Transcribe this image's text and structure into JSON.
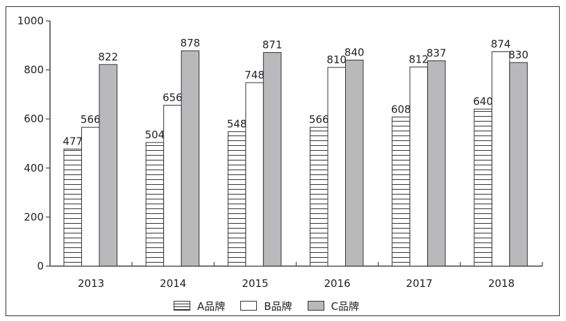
{
  "chart_data": {
    "type": "bar",
    "title": "",
    "xlabel": "",
    "ylabel": "",
    "categories": [
      "2013",
      "2014",
      "2015",
      "2016",
      "2017",
      "2018"
    ],
    "series": [
      {
        "name": "A品牌",
        "pattern": "horizontal-stripes",
        "values": [
          477,
          504,
          548,
          566,
          608,
          640
        ]
      },
      {
        "name": "B品牌",
        "color": "#ffffff",
        "values": [
          566,
          656,
          748,
          810,
          812,
          874
        ]
      },
      {
        "name": "C品牌",
        "color": "#b9b9bc",
        "values": [
          822,
          878,
          871,
          840,
          837,
          830
        ]
      }
    ],
    "ylim": [
      0,
      1000
    ],
    "yticks": [
      0,
      200,
      400,
      600,
      800,
      1000
    ],
    "grid": false,
    "legend_position": "bottom",
    "data_labels": true
  },
  "legend": {
    "a": "A品牌",
    "b": "B品牌",
    "c": "C品牌"
  }
}
